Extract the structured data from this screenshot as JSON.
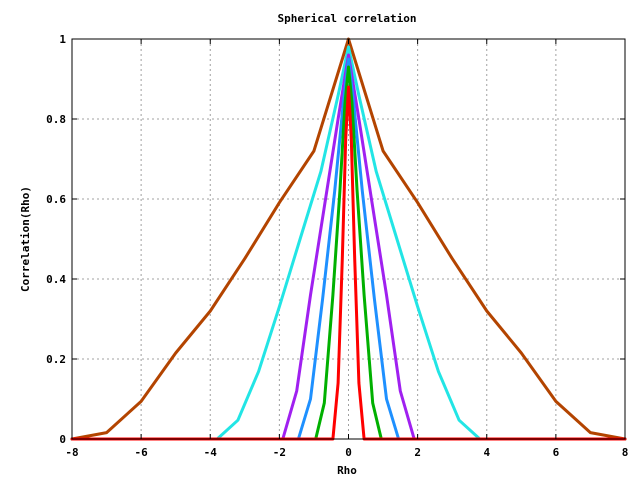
{
  "chart_data": {
    "type": "line",
    "title": "Spherical correlation",
    "xlabel": "Rho",
    "ylabel": "Correlation(Rho)",
    "xlim": [
      -8,
      8
    ],
    "ylim": [
      0,
      1
    ],
    "grid": true,
    "legend": "none",
    "x_ticks": [
      -8,
      -6,
      -4,
      -2,
      0,
      2,
      4,
      6,
      8
    ],
    "x_tick_labels": [
      "-8",
      "-6",
      "-4",
      "-2",
      "0",
      "2",
      "4",
      "6",
      "8"
    ],
    "y_ticks": [
      0,
      0.2,
      0.4,
      0.6,
      0.8,
      1
    ],
    "y_tick_labels": [
      "0",
      "0.2",
      "0.4",
      "0.6",
      "0.8",
      "1"
    ],
    "series": [
      {
        "color": "#b34400",
        "range": 8.0,
        "x": [
          -8,
          -7,
          -6,
          -5,
          -4,
          -3,
          -2,
          -1,
          0,
          1,
          2,
          3,
          4,
          5,
          6,
          7,
          8
        ],
        "values": [
          0.0,
          0.016,
          0.094,
          0.215,
          0.32,
          0.451,
          0.591,
          0.72,
          1.0,
          0.72,
          0.591,
          0.451,
          0.32,
          0.215,
          0.094,
          0.016,
          0.0
        ]
      },
      {
        "color": "#22e5e5",
        "range": 3.8,
        "x": [
          -3.8,
          -3.2,
          -2.6,
          -2.0,
          -1.4,
          -0.8,
          -0.3,
          0,
          0.3,
          0.8,
          1.4,
          2.0,
          2.6,
          3.2,
          3.8
        ],
        "values": [
          0.0,
          0.047,
          0.169,
          0.331,
          0.5,
          0.669,
          0.859,
          0.98,
          0.859,
          0.669,
          0.5,
          0.331,
          0.169,
          0.047,
          0.0
        ]
      },
      {
        "color": "#a020f0",
        "range": 1.9,
        "x": [
          -1.9,
          -1.5,
          -1.1,
          -0.7,
          -0.3,
          0,
          0.3,
          0.7,
          1.1,
          1.5,
          1.9
        ],
        "values": [
          0.0,
          0.12,
          0.36,
          0.58,
          0.8,
          0.96,
          0.8,
          0.58,
          0.36,
          0.12,
          0.0
        ]
      },
      {
        "color": "#1e90ff",
        "range": 1.45,
        "x": [
          -1.45,
          -1.1,
          -0.75,
          -0.4,
          -0.15,
          0,
          0.15,
          0.4,
          0.75,
          1.1,
          1.45
        ],
        "values": [
          0.0,
          0.1,
          0.35,
          0.62,
          0.84,
          0.95,
          0.84,
          0.62,
          0.35,
          0.1,
          0.0
        ]
      },
      {
        "color": "#00b000",
        "range": 0.95,
        "x": [
          -0.95,
          -0.7,
          -0.45,
          -0.25,
          -0.1,
          0,
          0.1,
          0.25,
          0.45,
          0.7,
          0.95
        ],
        "values": [
          0.0,
          0.09,
          0.36,
          0.62,
          0.84,
          0.93,
          0.84,
          0.62,
          0.36,
          0.09,
          0.0
        ]
      },
      {
        "color": "#ff0000",
        "range": 0.45,
        "x": [
          -0.45,
          -0.3,
          -0.18,
          -0.08,
          0,
          0.08,
          0.18,
          0.3,
          0.45
        ],
        "values": [
          0.0,
          0.14,
          0.45,
          0.75,
          0.88,
          0.75,
          0.45,
          0.14,
          0.0
        ]
      }
    ]
  }
}
